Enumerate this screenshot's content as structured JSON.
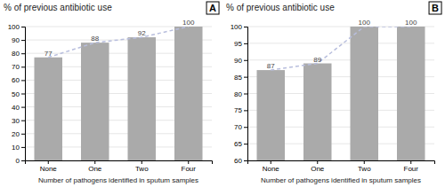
{
  "chart_data": [
    {
      "type": "bar",
      "title": "% of previous antibiotic use",
      "annotations": [
        "A"
      ],
      "x_label": "Number of pathogens identified in sputum samples",
      "categories": [
        "None",
        "One",
        "Two",
        "Four"
      ],
      "series": [
        {
          "type": "bar",
          "color": "#aaaaaa",
          "values": [
            77,
            88,
            92,
            100
          ]
        },
        {
          "type": "line",
          "color": "#b8bedd",
          "line_style": "dashed",
          "values": [
            77,
            88,
            92,
            100
          ]
        }
      ],
      "ylim": [
        0,
        100
      ],
      "yticks": [
        0,
        10,
        20,
        30,
        40,
        50,
        60,
        70,
        80,
        90,
        100
      ],
      "grid": true,
      "data_labels": true
    },
    {
      "type": "bar",
      "title": "% of previous antibiotic use",
      "annotations": [
        "B"
      ],
      "x_label": "Number of pathogens identified in sputum samples",
      "categories": [
        "None",
        "One",
        "Two",
        "Four"
      ],
      "series": [
        {
          "type": "bar",
          "color": "#aaaaaa",
          "values": [
            87,
            89,
            100,
            100
          ]
        },
        {
          "type": "line",
          "color": "#b8bedd",
          "line_style": "dashed",
          "values": [
            87,
            89,
            100,
            100
          ]
        }
      ],
      "ylim": [
        60,
        100
      ],
      "yticks": [
        60,
        65,
        70,
        75,
        80,
        85,
        90,
        95,
        100
      ],
      "grid": true,
      "data_labels": true
    }
  ]
}
